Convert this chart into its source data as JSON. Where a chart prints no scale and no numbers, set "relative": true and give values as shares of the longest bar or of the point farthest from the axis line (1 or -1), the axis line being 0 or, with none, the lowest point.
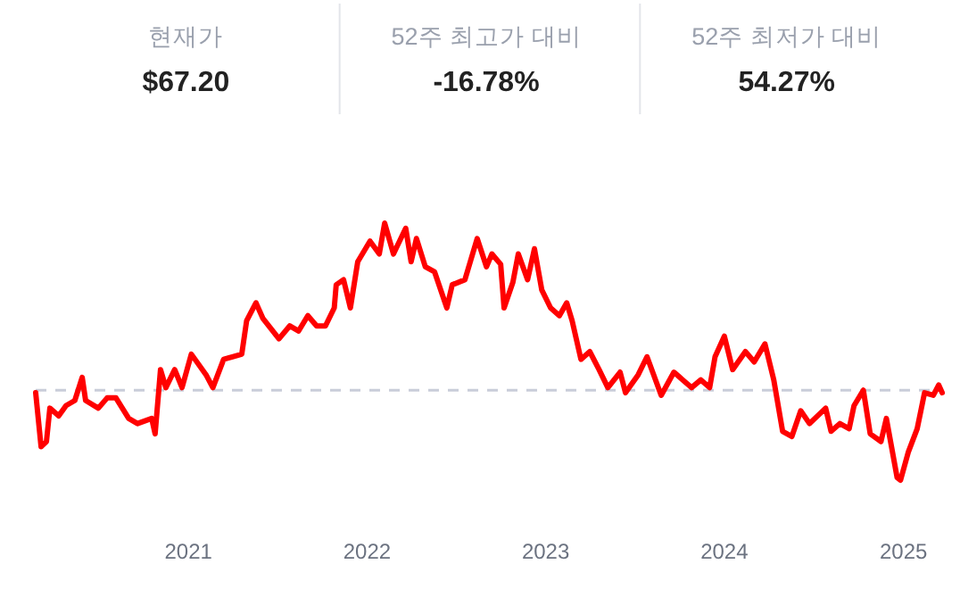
{
  "chart_data": [
    {
      "type": "other",
      "annotations": [
        "현재가",
        "$67.20",
        "52주 최고가 대비",
        "-16.78%",
        "52주 최저가 대비",
        "54.27%"
      ]
    },
    {
      "type": "line",
      "relative": true,
      "xlim": [
        "2020-02-24",
        "2025-03-21"
      ],
      "xticks": [
        {
          "value": "2021-01-01",
          "label": "2021"
        },
        {
          "value": "2022-01-01",
          "label": "2022"
        },
        {
          "value": "2023-01-01",
          "label": "2023"
        },
        {
          "value": "2024-01-01",
          "label": "2024"
        },
        {
          "value": "2025-01-01",
          "label": "2025"
        }
      ],
      "ref_lines": [
        {
          "axis": "y",
          "value": 0.35,
          "color": "#c9cdd9",
          "line_style": "dashed"
        }
      ],
      "x": [
        "2020-02-24",
        "2020-03-06",
        "2020-03-17",
        "2020-03-24",
        "2020-04-11",
        "2020-04-26",
        "2020-05-14",
        "2020-05-29",
        "2020-06-05",
        "2020-07-01",
        "2020-07-19",
        "2020-08-06",
        "2020-09-01",
        "2020-09-19",
        "2020-10-18",
        "2020-10-25",
        "2020-11-05",
        "2020-11-16",
        "2020-12-04",
        "2020-12-19",
        "2021-01-07",
        "2021-02-06",
        "2021-02-20",
        "2021-03-14",
        "2021-04-01",
        "2021-04-20",
        "2021-04-30",
        "2021-05-19",
        "2021-06-02",
        "2021-07-05",
        "2021-07-27",
        "2021-08-14",
        "2021-09-02",
        "2021-09-20",
        "2021-10-08",
        "2021-10-26",
        "2021-10-30",
        "2021-11-14",
        "2021-11-28",
        "2021-12-13",
        "2022-01-07",
        "2022-01-26",
        "2022-02-06",
        "2022-02-24",
        "2022-03-21",
        "2022-04-01",
        "2022-04-12",
        "2022-04-30",
        "2022-05-19",
        "2022-06-13",
        "2022-06-24",
        "2022-07-20",
        "2022-08-14",
        "2022-09-02",
        "2022-09-13",
        "2022-10-01",
        "2022-10-08",
        "2022-10-26",
        "2022-11-06",
        "2022-11-25",
        "2022-12-09",
        "2022-12-24",
        "2023-01-11",
        "2023-01-29",
        "2023-02-13",
        "2023-02-24",
        "2023-03-14",
        "2023-04-01",
        "2023-04-20",
        "2023-05-08",
        "2023-06-02",
        "2023-06-13",
        "2023-07-09",
        "2023-07-27",
        "2023-08-25",
        "2023-09-20",
        "2023-10-08",
        "2023-10-26",
        "2023-11-14",
        "2023-12-02",
        "2023-12-13",
        "2024-01-01",
        "2024-01-18",
        "2024-02-13",
        "2024-03-02",
        "2024-03-24",
        "2024-04-11",
        "2024-04-29",
        "2024-05-18",
        "2024-06-05",
        "2024-06-23",
        "2024-07-26",
        "2024-08-06",
        "2024-08-24",
        "2024-09-12",
        "2024-09-22",
        "2024-10-11",
        "2024-10-25",
        "2024-11-16",
        "2024-11-27",
        "2024-12-19",
        "2024-12-26",
        "2025-01-11",
        "2025-01-29",
        "2025-02-13",
        "2025-03-03",
        "2025-03-14",
        "2025-03-21"
      ],
      "series": [
        {
          "color": "#ff0000",
          "values": [
            0.34,
            0.13,
            0.15,
            0.28,
            0.25,
            0.29,
            0.31,
            0.4,
            0.31,
            0.28,
            0.32,
            0.32,
            0.24,
            0.22,
            0.24,
            0.18,
            0.43,
            0.36,
            0.43,
            0.36,
            0.49,
            0.41,
            0.36,
            0.47,
            0.48,
            0.49,
            0.62,
            0.69,
            0.63,
            0.55,
            0.6,
            0.58,
            0.64,
            0.6,
            0.6,
            0.67,
            0.76,
            0.78,
            0.67,
            0.85,
            0.93,
            0.88,
            1,
            0.88,
            0.98,
            0.85,
            0.94,
            0.83,
            0.81,
            0.67,
            0.76,
            0.78,
            0.94,
            0.83,
            0.88,
            0.84,
            0.67,
            0.77,
            0.88,
            0.78,
            0.9,
            0.74,
            0.67,
            0.64,
            0.69,
            0.62,
            0.47,
            0.5,
            0.43,
            0.36,
            0.42,
            0.34,
            0.41,
            0.48,
            0.33,
            0.42,
            0.39,
            0.36,
            0.39,
            0.36,
            0.48,
            0.56,
            0.43,
            0.5,
            0.46,
            0.53,
            0.39,
            0.19,
            0.17,
            0.27,
            0.22,
            0.28,
            0.19,
            0.22,
            0.2,
            0.29,
            0.35,
            0.18,
            0.15,
            0.24,
            0.01,
            0,
            0.11,
            0.2,
            0.34,
            0.33,
            0.37,
            0.34
          ]
        }
      ]
    }
  ]
}
